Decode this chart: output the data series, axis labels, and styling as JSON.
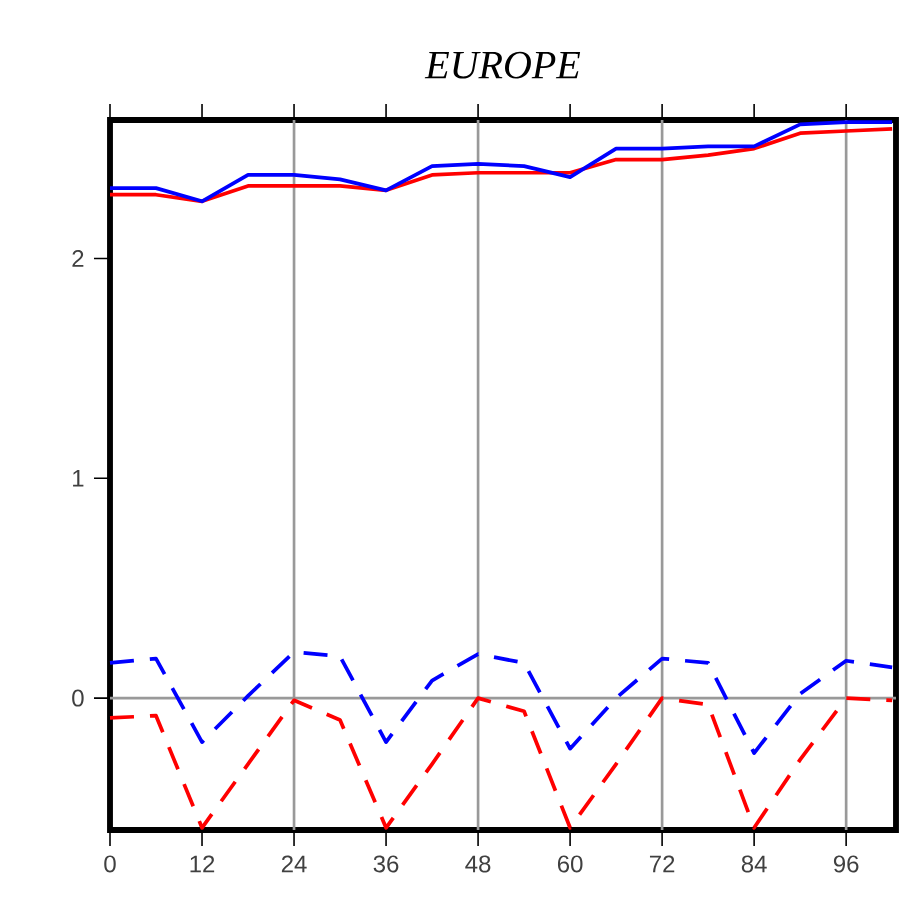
{
  "chart_data": {
    "type": "line",
    "title": "EUROPE",
    "x": [
      0,
      6,
      12,
      18,
      24,
      30,
      36,
      42,
      48,
      54,
      60,
      66,
      72,
      78,
      84,
      90,
      96,
      102
    ],
    "series": [
      {
        "color": "#ff0000",
        "line_style": "solid",
        "values": [
          2.29,
          2.29,
          2.26,
          2.33,
          2.33,
          2.33,
          2.31,
          2.38,
          2.39,
          2.39,
          2.39,
          2.45,
          2.45,
          2.47,
          2.5,
          2.57,
          2.58,
          2.59
        ]
      },
      {
        "color": "#0000ff",
        "line_style": "solid",
        "values": [
          2.32,
          2.32,
          2.26,
          2.38,
          2.38,
          2.36,
          2.31,
          2.42,
          2.43,
          2.42,
          2.37,
          2.5,
          2.5,
          2.51,
          2.51,
          2.61,
          2.62,
          2.62
        ]
      },
      {
        "color": "#ff0000",
        "line_style": "dashed",
        "values": [
          -0.09,
          -0.08,
          -0.59,
          -0.3,
          -0.01,
          -0.1,
          -0.59,
          -0.3,
          0.0,
          -0.06,
          -0.59,
          -0.3,
          0.0,
          -0.03,
          -0.59,
          -0.28,
          0.0,
          -0.01
        ]
      },
      {
        "color": "#0000ff",
        "line_style": "dashed",
        "values": [
          0.16,
          0.18,
          -0.2,
          0.01,
          0.21,
          0.19,
          -0.2,
          0.08,
          0.2,
          0.16,
          -0.23,
          0.0,
          0.18,
          0.16,
          -0.25,
          0.02,
          0.17,
          0.14
        ]
      }
    ],
    "xlim": [
      0,
      102.5
    ],
    "ylim": [
      -0.6,
      2.63
    ],
    "xticks": [
      0,
      12,
      24,
      36,
      48,
      60,
      72,
      84,
      96
    ],
    "yticks": [
      0,
      1,
      2
    ],
    "ref_lines": [
      {
        "axis": "x",
        "value": 24,
        "color": "#999999"
      },
      {
        "axis": "x",
        "value": 48,
        "color": "#999999"
      },
      {
        "axis": "x",
        "value": 72,
        "color": "#999999"
      },
      {
        "axis": "x",
        "value": 96,
        "color": "#999999"
      },
      {
        "axis": "y",
        "value": 0,
        "color": "#999999"
      }
    ]
  }
}
